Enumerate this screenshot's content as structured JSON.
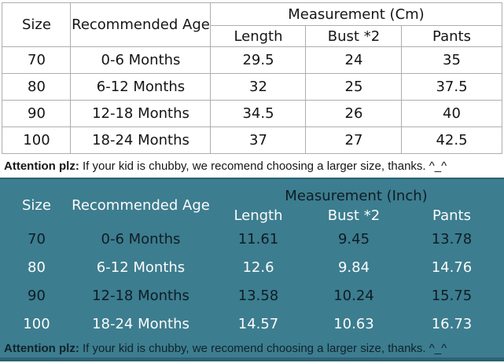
{
  "colors": {
    "teal_background": "#3C7D8F",
    "teal_dark_border": "#2B6375",
    "grid_line": "#AEAEAE",
    "text_black": "#151515",
    "text_white": "#FBFBFB",
    "inch_row_text_colors": [
      "#0E1D26",
      "#FBFBFB",
      "#0E1D26",
      "#FBFBFB"
    ]
  },
  "chart_data": [
    {
      "type": "table",
      "title": "Measurement (Cm)",
      "header": {
        "size": "Size",
        "age": "Recommended Age",
        "length": "Length",
        "bust": "Bust *2",
        "pants": "Pants"
      },
      "rows": [
        [
          "70",
          "0-6 Months",
          "29.5",
          "24",
          "35"
        ],
        [
          "80",
          "6-12 Months",
          "32",
          "25",
          "37.5"
        ],
        [
          "90",
          "12-18 Months",
          "34.5",
          "26",
          "40"
        ],
        [
          "100",
          "18-24 Months",
          "37",
          "27",
          "42.5"
        ]
      ],
      "note_bold": "Attention plz:",
      "note_rest": " If your kid is chubby, we recomend choosing a larger size, thanks. ^_^"
    },
    {
      "type": "table",
      "title": "Measurement (Inch)",
      "header": {
        "size": "Size",
        "age": "Recommended Age",
        "length": "Length",
        "bust": "Bust *2",
        "pants": "Pants"
      },
      "rows": [
        [
          "70",
          "0-6 Months",
          "11.61",
          "9.45",
          "13.78"
        ],
        [
          "80",
          "6-12 Months",
          "12.6",
          "9.84",
          "14.76"
        ],
        [
          "90",
          "12-18 Months",
          "13.58",
          "10.24",
          "15.75"
        ],
        [
          "100",
          "18-24 Months",
          "14.57",
          "10.63",
          "16.73"
        ]
      ],
      "note_bold": "Attention plz:",
      "note_rest": " If your kid is chubby, we recomend choosing a larger size, thanks. ^_^"
    }
  ]
}
